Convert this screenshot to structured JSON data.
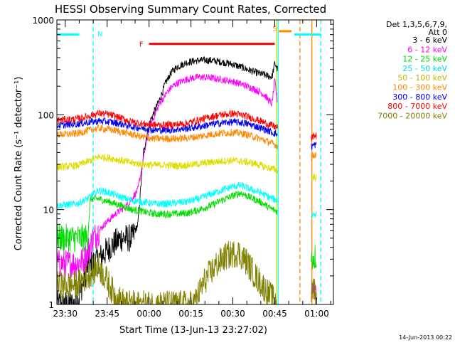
{
  "chart_data": {
    "type": "line",
    "title": "HESSI Observing Summary Count Rates, Corrected",
    "xlabel": "Start Time (13-Jun-13 23:27:02)",
    "ylabel": "Corrected Count Rate (s⁻¹ detector⁻¹)",
    "yscale": "log",
    "ylim": [
      1,
      1000
    ],
    "xlim": [
      "23:27",
      "01:06"
    ],
    "x_ticks": [
      {
        "label": "23:30",
        "t": 0
      },
      {
        "label": "23:45",
        "t": 15
      },
      {
        "label": "00:00",
        "t": 30
      },
      {
        "label": "00:15",
        "t": 45
      },
      {
        "label": "00:30",
        "t": 60
      },
      {
        "label": "00:45",
        "t": 75
      },
      {
        "label": "01:00",
        "t": 90
      }
    ],
    "y_ticks": [
      {
        "label": "1",
        "v": 1
      },
      {
        "label": "10",
        "v": 10
      },
      {
        "label": "100",
        "v": 100
      },
      {
        "label": "1000",
        "v": 1000
      }
    ],
    "time_origin_label": "23:30",
    "gap_minutes": [
      76,
      88
    ],
    "legend_header": [
      "Det 1,3,5,6,7,9,",
      "Att 0"
    ],
    "legend_placement": "right",
    "series": [
      {
        "name": "3 - 6 keV",
        "color": "#000000",
        "points": [
          [
            -3,
            1
          ],
          [
            4,
            1
          ],
          [
            8,
            2.5
          ],
          [
            12,
            3
          ],
          [
            16,
            4
          ],
          [
            20,
            5
          ],
          [
            24,
            5
          ],
          [
            26,
            7
          ],
          [
            28,
            40
          ],
          [
            30,
            80
          ],
          [
            32,
            110
          ],
          [
            34,
            150
          ],
          [
            36,
            220
          ],
          [
            38,
            280
          ],
          [
            40,
            320
          ],
          [
            44,
            360
          ],
          [
            48,
            375
          ],
          [
            52,
            375
          ],
          [
            56,
            360
          ],
          [
            60,
            340
          ],
          [
            64,
            310
          ],
          [
            68,
            280
          ],
          [
            72,
            260
          ],
          [
            74,
            250
          ],
          [
            75,
            350
          ],
          [
            76,
            300
          ]
        ]
      },
      {
        "name": "6 - 12 keV",
        "color": "#ff00ff",
        "points": [
          [
            -3,
            2.7
          ],
          [
            0,
            2.7
          ],
          [
            4,
            2.7
          ],
          [
            7,
            3
          ],
          [
            10,
            5
          ],
          [
            14,
            7
          ],
          [
            18,
            9
          ],
          [
            22,
            11
          ],
          [
            26,
            16
          ],
          [
            28,
            35
          ],
          [
            30,
            70
          ],
          [
            32,
            100
          ],
          [
            34,
            135
          ],
          [
            36,
            165
          ],
          [
            38,
            195
          ],
          [
            40,
            215
          ],
          [
            44,
            240
          ],
          [
            48,
            250
          ],
          [
            52,
            245
          ],
          [
            56,
            235
          ],
          [
            60,
            225
          ],
          [
            64,
            205
          ],
          [
            68,
            185
          ],
          [
            71,
            165
          ],
          [
            73,
            140
          ],
          [
            74,
            130
          ],
          [
            75,
            230
          ],
          [
            76,
            135
          ],
          [
            88,
            1.5
          ],
          [
            89,
            1.5
          ],
          [
            90,
            1.5
          ]
        ]
      },
      {
        "name": "12 - 25 keV",
        "color": "#00dd00",
        "points": [
          [
            -3,
            5
          ],
          [
            0,
            5
          ],
          [
            4,
            5
          ],
          [
            6,
            5
          ],
          [
            8,
            5
          ],
          [
            9,
            13
          ],
          [
            12,
            13
          ],
          [
            16,
            12
          ],
          [
            20,
            11
          ],
          [
            24,
            10
          ],
          [
            28,
            9.5
          ],
          [
            32,
            9
          ],
          [
            36,
            9
          ],
          [
            40,
            9
          ],
          [
            44,
            9.2
          ],
          [
            48,
            10
          ],
          [
            52,
            11
          ],
          [
            56,
            12.5
          ],
          [
            60,
            14
          ],
          [
            63,
            15
          ],
          [
            66,
            13.5
          ],
          [
            70,
            12
          ],
          [
            73,
            10.5
          ],
          [
            76,
            9.5
          ],
          [
            88,
            3
          ],
          [
            89,
            3.2
          ],
          [
            90,
            3.2
          ]
        ]
      },
      {
        "name": "25 - 50 keV",
        "color": "#00ffff",
        "points": [
          [
            -3,
            11
          ],
          [
            4,
            11.5
          ],
          [
            8,
            13
          ],
          [
            12,
            16
          ],
          [
            16,
            15
          ],
          [
            20,
            13.5
          ],
          [
            24,
            12.5
          ],
          [
            28,
            12
          ],
          [
            32,
            11.5
          ],
          [
            36,
            11.5
          ],
          [
            40,
            11.8
          ],
          [
            44,
            12.2
          ],
          [
            48,
            13
          ],
          [
            52,
            14.5
          ],
          [
            56,
            16
          ],
          [
            60,
            17.5
          ],
          [
            63,
            18
          ],
          [
            66,
            16.5
          ],
          [
            70,
            15
          ],
          [
            73,
            13.5
          ],
          [
            76,
            12.5
          ],
          [
            88,
            8.5
          ],
          [
            89,
            9
          ],
          [
            90,
            9
          ]
        ]
      },
      {
        "name": "50 - 100 keV",
        "color": "#dddd00",
        "points": [
          [
            -3,
            28
          ],
          [
            4,
            29
          ],
          [
            8,
            32
          ],
          [
            12,
            36
          ],
          [
            16,
            35
          ],
          [
            20,
            33
          ],
          [
            24,
            31
          ],
          [
            28,
            30
          ],
          [
            32,
            29.5
          ],
          [
            36,
            29.5
          ],
          [
            40,
            29
          ],
          [
            44,
            29.5
          ],
          [
            48,
            30.5
          ],
          [
            52,
            31.5
          ],
          [
            56,
            32.5
          ],
          [
            60,
            33
          ],
          [
            64,
            32
          ],
          [
            68,
            30.5
          ],
          [
            72,
            28
          ],
          [
            76,
            26
          ],
          [
            88,
            22
          ],
          [
            89,
            22
          ],
          [
            90,
            22
          ]
        ]
      },
      {
        "name": "100 - 300 keV",
        "color": "#ff8800",
        "points": [
          [
            -3,
            62
          ],
          [
            4,
            63
          ],
          [
            8,
            68
          ],
          [
            12,
            72
          ],
          [
            16,
            70
          ],
          [
            20,
            66
          ],
          [
            24,
            62
          ],
          [
            28,
            58
          ],
          [
            32,
            56
          ],
          [
            36,
            56
          ],
          [
            40,
            56
          ],
          [
            44,
            57
          ],
          [
            48,
            59
          ],
          [
            52,
            62
          ],
          [
            56,
            64
          ],
          [
            60,
            65
          ],
          [
            64,
            63
          ],
          [
            68,
            58
          ],
          [
            72,
            53
          ],
          [
            76,
            47
          ],
          [
            88,
            35
          ],
          [
            89,
            38
          ],
          [
            90,
            38
          ]
        ]
      },
      {
        "name": "300 - 800 keV",
        "color": "#0000ee",
        "points": [
          [
            -3,
            77
          ],
          [
            4,
            80
          ],
          [
            8,
            83
          ],
          [
            12,
            86
          ],
          [
            16,
            84
          ],
          [
            20,
            80
          ],
          [
            24,
            75
          ],
          [
            28,
            72
          ],
          [
            32,
            69
          ],
          [
            36,
            69
          ],
          [
            40,
            70
          ],
          [
            44,
            72
          ],
          [
            48,
            75
          ],
          [
            52,
            79
          ],
          [
            56,
            82
          ],
          [
            60,
            84
          ],
          [
            64,
            82
          ],
          [
            68,
            76
          ],
          [
            72,
            69
          ],
          [
            76,
            62
          ],
          [
            88,
            46
          ],
          [
            89,
            48
          ],
          [
            90,
            48
          ]
        ]
      },
      {
        "name": "800 - 7000 keV",
        "color": "#ff0000",
        "points": [
          [
            -3,
            88
          ],
          [
            4,
            90
          ],
          [
            8,
            96
          ],
          [
            12,
            104
          ],
          [
            16,
            100
          ],
          [
            20,
            92
          ],
          [
            24,
            84
          ],
          [
            28,
            80
          ],
          [
            32,
            78
          ],
          [
            36,
            78
          ],
          [
            40,
            79
          ],
          [
            44,
            82
          ],
          [
            48,
            88
          ],
          [
            52,
            95
          ],
          [
            56,
            100
          ],
          [
            60,
            103
          ],
          [
            64,
            98
          ],
          [
            68,
            90
          ],
          [
            72,
            81
          ],
          [
            76,
            73
          ],
          [
            88,
            56
          ],
          [
            89,
            60
          ],
          [
            90,
            60
          ]
        ]
      },
      {
        "name": "7000 - 20000 keV",
        "color": "#808000",
        "points": [
          [
            -3,
            1.6
          ],
          [
            4,
            1.6
          ],
          [
            8,
            2
          ],
          [
            12,
            2.5
          ],
          [
            14,
            2
          ],
          [
            18,
            1.2
          ],
          [
            22,
            1
          ],
          [
            30,
            1
          ],
          [
            38,
            1
          ],
          [
            46,
            1
          ],
          [
            50,
            1.8
          ],
          [
            54,
            2.6
          ],
          [
            58,
            3.3
          ],
          [
            62,
            3.5
          ],
          [
            65,
            2.8
          ],
          [
            68,
            2
          ],
          [
            72,
            1.4
          ],
          [
            76,
            1
          ],
          [
            88,
            1.2
          ],
          [
            89,
            1.6
          ],
          [
            90,
            1.2
          ]
        ]
      }
    ],
    "attenuator_segments": [
      {
        "color": "#00ffff",
        "from_t": -3,
        "to_t": 5,
        "v": 700
      },
      {
        "color": "#00ffff",
        "from_t": 82,
        "to_t": 91.5,
        "v": 700
      },
      {
        "color": "#ff0000",
        "from_t": 30,
        "to_t": 75,
        "v": 560
      },
      {
        "color": "#ff8800",
        "from_t": 76.5,
        "to_t": 81,
        "v": 760
      }
    ],
    "marker_lines": [
      {
        "color": "#00ffff",
        "t": 10,
        "style": "dashed"
      },
      {
        "color": "#00ffff",
        "t": 91.5,
        "style": "dashed"
      },
      {
        "color": "#00ffff",
        "t": 76.2,
        "style": "solid"
      },
      {
        "color": "#dddd00",
        "t": 75.6,
        "style": "solid"
      },
      {
        "color": "#ff8800",
        "t": 84,
        "style": "dashed"
      },
      {
        "color": "#ff8800",
        "t": 88.3,
        "style": "solid"
      }
    ],
    "flags": [
      {
        "text": "N",
        "color": "#00ffff",
        "t": 11.5,
        "v": 720
      },
      {
        "text": "F",
        "color": "#ff0000",
        "t": 26.5,
        "v": 560
      },
      {
        "text": "S",
        "color": "#ff8800",
        "t": 74.2,
        "v": 820
      }
    ],
    "footer_date": "14-Jun-2013 00:22"
  }
}
